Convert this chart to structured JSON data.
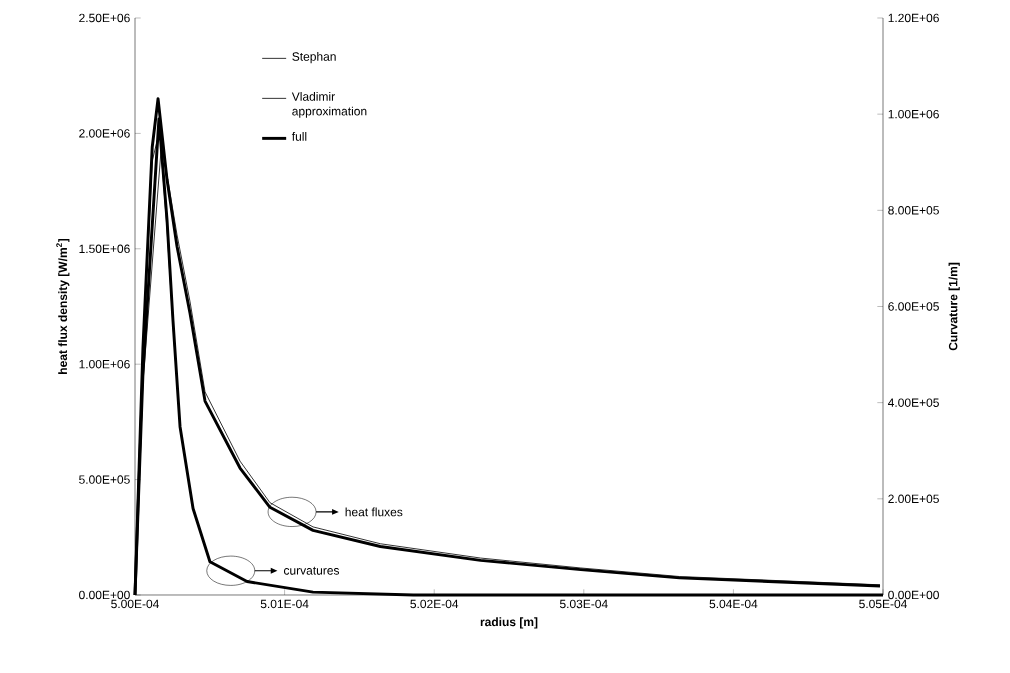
{
  "chart_data": {
    "type": "line",
    "xlabel": "radius [m]",
    "ylabel": "heat flux density [W/m$^{2}$]",
    "y2label": "Curvature [1/m]",
    "xlim": [
      0.0005,
      0.000505
    ],
    "xticks": [
      {
        "value": 0.0005,
        "label": "5.00E-04"
      },
      {
        "value": 0.000501,
        "label": "5.01E-04"
      },
      {
        "value": 0.000502,
        "label": "5.02E-04"
      },
      {
        "value": 0.000503,
        "label": "5.03E-04"
      },
      {
        "value": 0.000504,
        "label": "5.04E-04"
      },
      {
        "value": 0.000505,
        "label": "5.05E-04"
      }
    ],
    "ylim": [
      0,
      2500000
    ],
    "yticks": [
      {
        "value": 0,
        "label": "0.00E+00"
      },
      {
        "value": 500000,
        "label": "5.00E+05"
      },
      {
        "value": 1000000,
        "label": "1.00E+06"
      },
      {
        "value": 1500000,
        "label": "1.50E+06"
      },
      {
        "value": 2000000,
        "label": "2.00E+06"
      },
      {
        "value": 2500000,
        "label": "2.50E+06"
      }
    ],
    "y2lim": [
      0,
      1200000
    ],
    "y2ticks": [
      {
        "value": 0,
        "label": "0.00E+00"
      },
      {
        "value": 200000,
        "label": "2.00E+05"
      },
      {
        "value": 400000,
        "label": "4.00E+05"
      },
      {
        "value": 600000,
        "label": "6.00E+05"
      },
      {
        "value": 800000,
        "label": "8.00E+05"
      },
      {
        "value": 1000000,
        "label": "1.00E+06"
      },
      {
        "value": 1200000,
        "label": "1.20E+06"
      }
    ],
    "series": [
      {
        "name": "Stephan",
        "color": "#000000",
        "x": [
          0.0005,
          0.000500053,
          0.000500115,
          0.00050016,
          0.000500214,
          0.000500281,
          0.000500368,
          0.000500468,
          0.000500702,
          0.000500902,
          0.00050119,
          0.00050164,
          0.00050231,
          0.00050298,
          0.00050364,
          0.00050498
        ],
        "values": [
          0,
          1040000,
          1880000,
          2000000,
          1820000,
          1560000,
          1270000,
          880000,
          580000,
          400000,
          295000,
          222000,
          160000,
          117000,
          80000,
          44000
        ]
      },
      {
        "name": "Vladimir approximation",
        "color": "#000000",
        "axis": "y2",
        "x": [
          0.0005,
          0.000500053,
          0.000500174,
          0.000500214,
          0.000500254,
          0.000500301,
          0.000500388,
          0.000500501,
          0.000500749,
          0.00050119,
          0.00050186,
          0.000505
        ],
        "values": [
          0,
          440000,
          925000,
          760000,
          560000,
          350000,
          180000,
          69000,
          28000,
          6000,
          0,
          0
        ]
      },
      {
        "name": "full",
        "color": "#000000",
        "x": [
          0.0005,
          0.000500053,
          0.000500115,
          0.000500154,
          0.000500214,
          0.000500281,
          0.000500368,
          0.000500468,
          0.000500702,
          0.000500902,
          0.00050119,
          0.00050164,
          0.00050231,
          0.00050298,
          0.00050364,
          0.00050498
        ],
        "values": [
          0,
          1070000,
          1940000,
          2150000,
          1800000,
          1510000,
          1220000,
          840000,
          550000,
          380000,
          280000,
          210000,
          150000,
          110000,
          74000,
          39000
        ]
      },
      {
        "color": "#000000",
        "axis": "y2",
        "x": [
          0.0005,
          0.000500053,
          0.00050016,
          0.000500214,
          0.000500254,
          0.000500301,
          0.000500388,
          0.000500501,
          0.000500749,
          0.00050119,
          0.00050186,
          0.000505
        ],
        "values": [
          0,
          460000,
          990000,
          780000,
          570000,
          350000,
          180000,
          69000,
          28000,
          6000,
          0,
          0
        ]
      }
    ],
    "legend": "top left",
    "marker": "none",
    "line_style": "solid",
    "grid": false,
    "annotations": [
      "heat fluxes",
      "curvatures"
    ]
  }
}
